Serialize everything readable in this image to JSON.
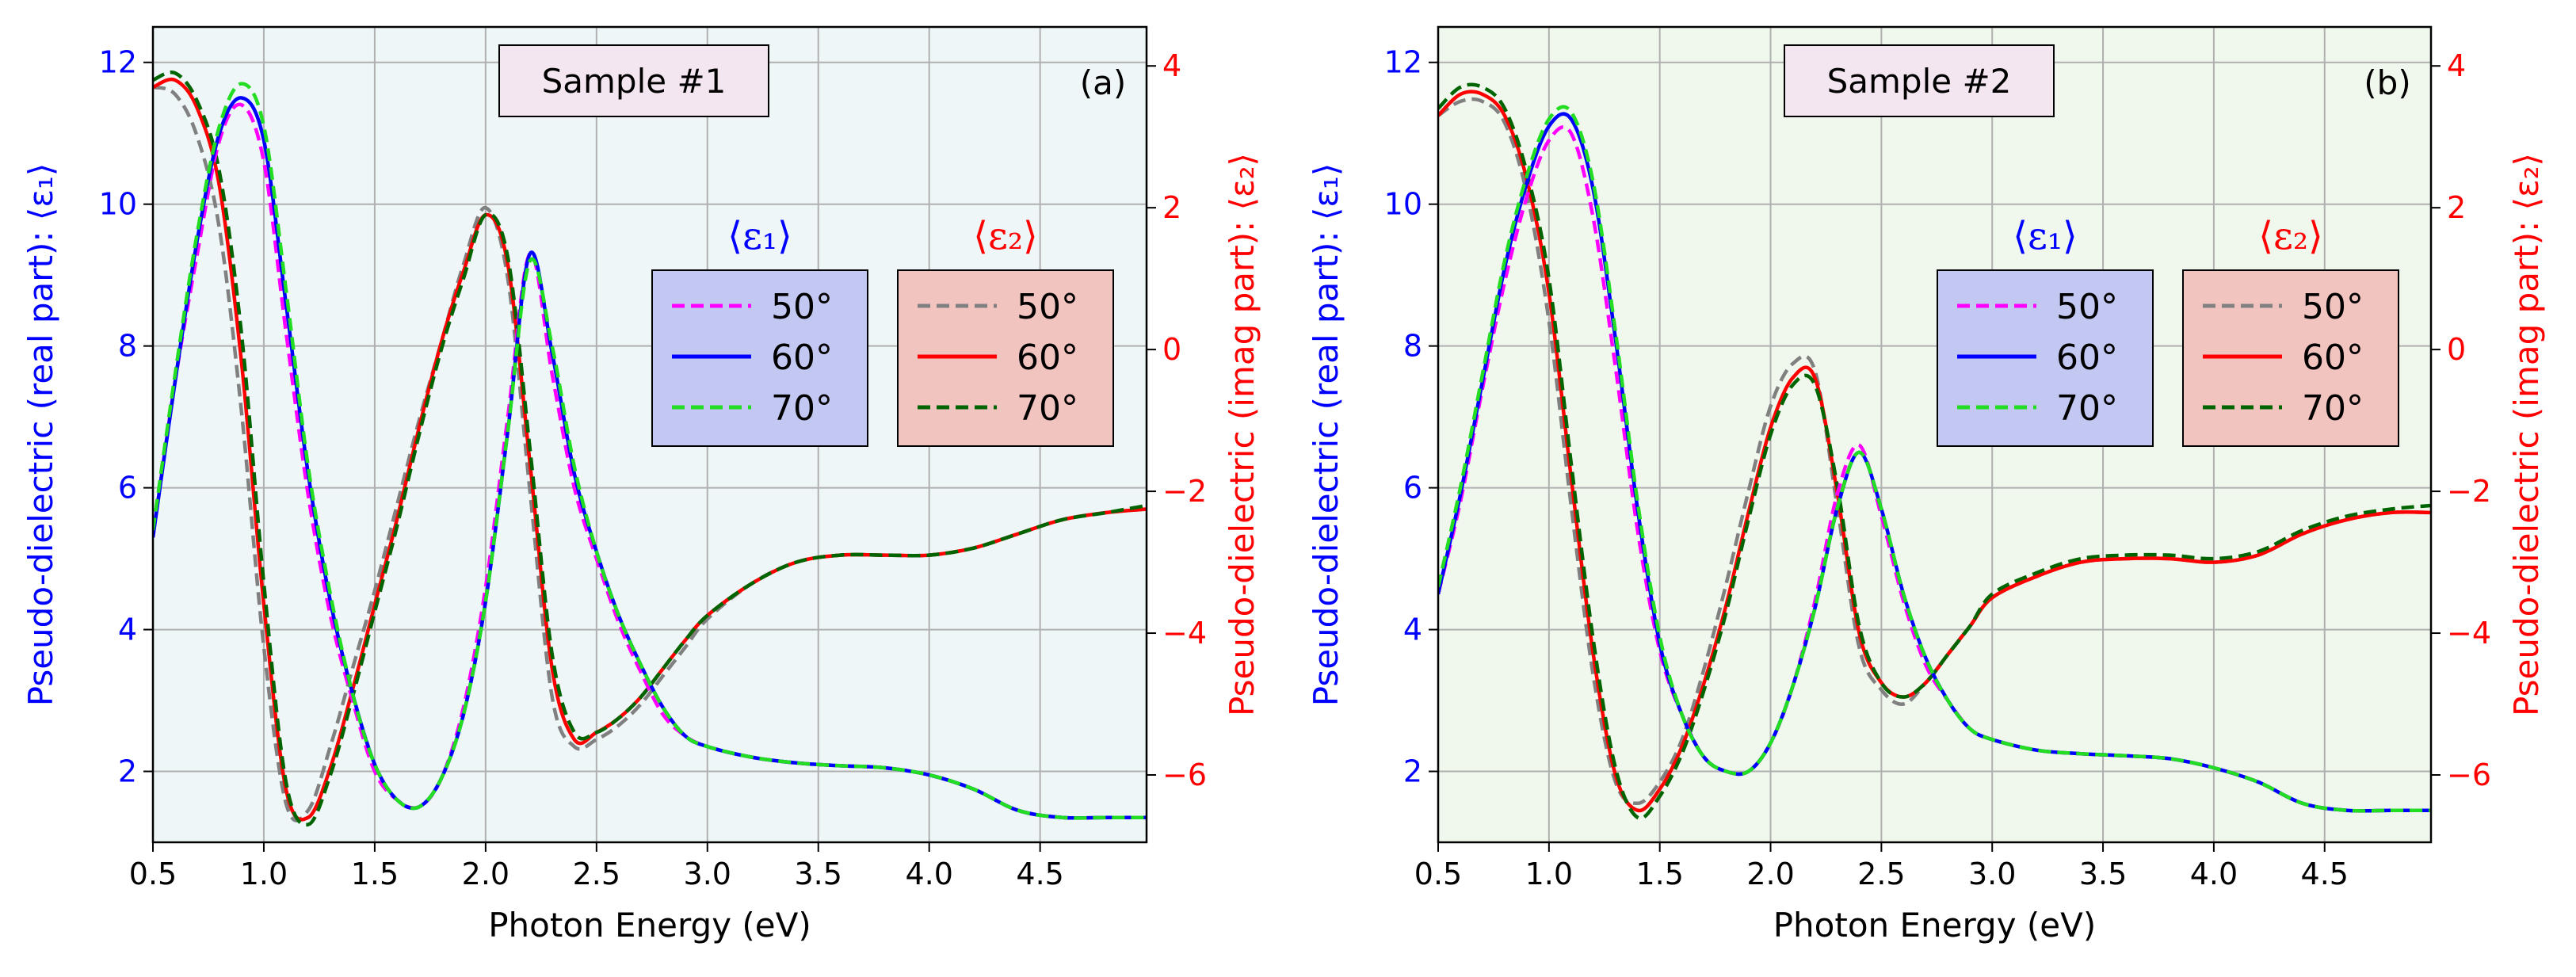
{
  "figure": {
    "background": "#ffffff",
    "color_e1_axis": "#0000ff",
    "color_e2_axis": "#ff0000"
  },
  "panels": [
    {
      "bg": "#eef6f8",
      "sample_label": "Sample #1",
      "panel_letter": "(a)",
      "xlabel": "Photon Energy (eV)",
      "ylabel_left": "Pseudo-dielectric (real part): ⟨ε₁⟩",
      "ylabel_right": "Pseudo-dielectric (imag part): ⟨ε₂⟩",
      "x_ticks": [
        "0.5",
        "1.0",
        "1.5",
        "2.0",
        "2.5",
        "3.0",
        "3.5",
        "4.0",
        "4.5"
      ],
      "y_left_ticks": [
        "2",
        "4",
        "6",
        "8",
        "10",
        "12"
      ],
      "y_right_ticks": [
        "−6",
        "−4",
        "−2",
        "0",
        "2",
        "4"
      ],
      "legend_e1": {
        "title": "⟨ε₁⟩",
        "bg": "#c3c8f2",
        "items": [
          "50°",
          "60°",
          "70°"
        ]
      },
      "legend_e2": {
        "title": "⟨ε₂⟩",
        "bg": "#f2c4c0",
        "items": [
          "50°",
          "60°",
          "70°"
        ]
      }
    },
    {
      "bg": "#f0f8ee",
      "sample_label": "Sample #2",
      "panel_letter": "(b)",
      "xlabel": "Photon Energy (eV)",
      "ylabel_left": "Pseudo-dielectric (real part): ⟨ε₁⟩",
      "ylabel_right": "Pseudo-dielectric (imag part): ⟨ε₂⟩",
      "x_ticks": [
        "0.5",
        "1.0",
        "1.5",
        "2.0",
        "2.5",
        "3.0",
        "3.5",
        "4.0",
        "4.5"
      ],
      "y_left_ticks": [
        "2",
        "4",
        "6",
        "8",
        "10",
        "12"
      ],
      "y_right_ticks": [
        "−6",
        "−4",
        "−2",
        "0",
        "2",
        "4"
      ],
      "legend_e1": {
        "title": "⟨ε₁⟩",
        "bg": "#c3c8f2",
        "items": [
          "50°",
          "60°",
          "70°"
        ]
      },
      "legend_e2": {
        "title": "⟨ε₂⟩",
        "bg": "#f2c4c0",
        "items": [
          "50°",
          "60°",
          "70°"
        ]
      }
    }
  ],
  "chart_data": [
    {
      "type": "line",
      "title": "Sample #1",
      "xlabel": "Photon Energy (eV)",
      "ylabel": "Pseudo-dielectric (real part): ⟨ε₁⟩",
      "ylabel_right": "Pseudo-dielectric (imag part): ⟨ε₂⟩",
      "xlim": [
        0.5,
        4.98
      ],
      "ylim": [
        1.0,
        12.5
      ],
      "ylim_right": [
        -6.95,
        4.55
      ],
      "grid": true,
      "legend_placement": "center-right",
      "x": [
        0.5,
        0.6,
        0.7,
        0.8,
        0.9,
        1.0,
        1.1,
        1.2,
        1.3,
        1.4,
        1.5,
        1.6,
        1.7,
        1.8,
        1.9,
        2.0,
        2.1,
        2.2,
        2.3,
        2.4,
        2.5,
        2.6,
        2.7,
        2.8,
        2.9,
        3.0,
        3.2,
        3.4,
        3.6,
        3.8,
        4.0,
        4.2,
        4.4,
        4.6,
        4.8,
        4.98
      ],
      "series": [
        {
          "name": "⟨ε₁⟩ 50°",
          "axis": "left",
          "color": "#ff00ff",
          "dash": "dashed",
          "values": [
            5.3,
            7.5,
            9.3,
            10.9,
            11.4,
            10.6,
            8.2,
            5.9,
            4.2,
            3.0,
            2.0,
            1.6,
            1.5,
            1.9,
            2.9,
            4.6,
            7.0,
            9.3,
            7.6,
            6.0,
            5.0,
            4.1,
            3.4,
            2.8,
            2.5,
            2.35,
            2.2,
            2.12,
            2.08,
            2.05,
            1.95,
            1.75,
            1.45,
            1.35,
            1.35,
            1.35
          ]
        },
        {
          "name": "⟨ε₁⟩ 60°",
          "axis": "left",
          "color": "#0000ff",
          "dash": "solid",
          "values": [
            5.3,
            7.5,
            9.5,
            11.0,
            11.5,
            10.9,
            8.6,
            6.2,
            4.4,
            3.1,
            2.1,
            1.6,
            1.5,
            1.9,
            2.8,
            4.4,
            6.8,
            9.3,
            7.9,
            6.2,
            5.1,
            4.2,
            3.5,
            2.9,
            2.5,
            2.35,
            2.2,
            2.12,
            2.08,
            2.05,
            1.95,
            1.75,
            1.45,
            1.35,
            1.35,
            1.35
          ]
        },
        {
          "name": "⟨ε₁⟩ 70°",
          "axis": "left",
          "color": "#22dd22",
          "dash": "dashed",
          "values": [
            5.4,
            7.6,
            9.6,
            11.1,
            11.7,
            11.1,
            8.8,
            6.3,
            4.5,
            3.1,
            2.1,
            1.6,
            1.5,
            1.9,
            2.8,
            4.4,
            6.8,
            9.2,
            8.0,
            6.3,
            5.1,
            4.2,
            3.5,
            2.9,
            2.5,
            2.35,
            2.2,
            2.12,
            2.08,
            2.05,
            1.95,
            1.75,
            1.45,
            1.35,
            1.35,
            1.35
          ]
        },
        {
          "name": "⟨ε₂⟩ 50°",
          "axis": "right",
          "color": "#808080",
          "dash": "dashed",
          "values": [
            3.7,
            3.6,
            3.0,
            1.7,
            -0.9,
            -4.2,
            -6.4,
            -6.5,
            -5.6,
            -4.5,
            -3.4,
            -2.2,
            -1.0,
            0.1,
            1.2,
            2.0,
            1.0,
            -2.0,
            -4.9,
            -5.6,
            -5.5,
            -5.3,
            -5.0,
            -4.6,
            -4.2,
            -3.8,
            -3.3,
            -3.0,
            -2.9,
            -2.9,
            -2.9,
            -2.8,
            -2.6,
            -2.4,
            -2.3,
            -2.25
          ]
        },
        {
          "name": "⟨ε₂⟩ 60°",
          "axis": "right",
          "color": "#ff0000",
          "dash": "solid",
          "values": [
            3.7,
            3.8,
            3.4,
            2.3,
            -0.2,
            -3.6,
            -6.2,
            -6.6,
            -5.9,
            -4.8,
            -3.6,
            -2.4,
            -1.1,
            0.1,
            1.1,
            1.9,
            1.2,
            -1.6,
            -4.5,
            -5.5,
            -5.4,
            -5.2,
            -4.9,
            -4.5,
            -4.1,
            -3.75,
            -3.3,
            -3.0,
            -2.9,
            -2.9,
            -2.9,
            -2.8,
            -2.6,
            -2.4,
            -2.3,
            -2.25
          ]
        },
        {
          "name": "⟨ε₂⟩ 70°",
          "axis": "right",
          "color": "#006400",
          "dash": "dashed",
          "values": [
            3.8,
            3.9,
            3.5,
            2.5,
            0.2,
            -3.3,
            -6.1,
            -6.7,
            -6.0,
            -4.9,
            -3.7,
            -2.5,
            -1.2,
            0.0,
            1.0,
            1.9,
            1.3,
            -1.4,
            -4.3,
            -5.4,
            -5.4,
            -5.2,
            -4.9,
            -4.5,
            -4.1,
            -3.75,
            -3.3,
            -3.0,
            -2.9,
            -2.9,
            -2.9,
            -2.8,
            -2.6,
            -2.4,
            -2.3,
            -2.2
          ]
        }
      ]
    },
    {
      "type": "line",
      "title": "Sample #2",
      "xlabel": "Photon Energy (eV)",
      "ylabel": "Pseudo-dielectric (real part): ⟨ε₁⟩",
      "ylabel_right": "Pseudo-dielectric (imag part): ⟨ε₂⟩",
      "xlim": [
        0.5,
        4.98
      ],
      "ylim": [
        1.0,
        12.5
      ],
      "ylim_right": [
        -6.95,
        4.55
      ],
      "grid": true,
      "legend_placement": "center-right",
      "x": [
        0.5,
        0.6,
        0.7,
        0.8,
        0.9,
        1.0,
        1.1,
        1.2,
        1.3,
        1.4,
        1.5,
        1.6,
        1.7,
        1.8,
        1.9,
        2.0,
        2.1,
        2.2,
        2.3,
        2.4,
        2.5,
        2.6,
        2.7,
        2.8,
        2.9,
        3.0,
        3.2,
        3.4,
        3.6,
        3.8,
        4.0,
        4.2,
        4.4,
        4.6,
        4.8,
        4.98
      ],
      "series": [
        {
          "name": "⟨ε₁⟩ 50°",
          "axis": "left",
          "color": "#ff00ff",
          "dash": "dashed",
          "values": [
            4.5,
            5.8,
            7.4,
            8.9,
            10.1,
            10.9,
            11.0,
            9.8,
            7.7,
            5.4,
            3.7,
            2.8,
            2.2,
            2.0,
            2.0,
            2.4,
            3.2,
            4.4,
            5.9,
            6.6,
            5.6,
            4.4,
            3.5,
            3.0,
            2.6,
            2.45,
            2.3,
            2.25,
            2.22,
            2.18,
            2.05,
            1.85,
            1.55,
            1.45,
            1.45,
            1.45
          ]
        },
        {
          "name": "⟨ε₁⟩ 60°",
          "axis": "left",
          "color": "#0000ff",
          "dash": "solid",
          "values": [
            4.5,
            5.9,
            7.5,
            9.1,
            10.3,
            11.1,
            11.2,
            10.2,
            8.1,
            5.7,
            3.8,
            2.8,
            2.2,
            2.0,
            2.0,
            2.4,
            3.2,
            4.3,
            5.7,
            6.5,
            5.7,
            4.5,
            3.6,
            3.0,
            2.6,
            2.45,
            2.3,
            2.25,
            2.22,
            2.18,
            2.05,
            1.85,
            1.55,
            1.45,
            1.45,
            1.45
          ]
        },
        {
          "name": "⟨ε₁⟩ 70°",
          "axis": "left",
          "color": "#22dd22",
          "dash": "dashed",
          "values": [
            4.6,
            6.0,
            7.6,
            9.2,
            10.4,
            11.2,
            11.3,
            10.3,
            8.2,
            5.8,
            3.9,
            2.8,
            2.2,
            2.0,
            2.0,
            2.4,
            3.2,
            4.3,
            5.7,
            6.5,
            5.7,
            4.5,
            3.6,
            3.0,
            2.6,
            2.45,
            2.3,
            2.25,
            2.22,
            2.18,
            2.05,
            1.85,
            1.55,
            1.45,
            1.45,
            1.45
          ]
        },
        {
          "name": "⟨ε₂⟩ 50°",
          "axis": "right",
          "color": "#808080",
          "dash": "dashed",
          "values": [
            3.3,
            3.5,
            3.5,
            3.2,
            2.2,
            0.4,
            -2.2,
            -4.6,
            -6.1,
            -6.4,
            -6.1,
            -5.5,
            -4.5,
            -3.3,
            -2.0,
            -0.8,
            -0.2,
            -0.3,
            -2.2,
            -4.2,
            -4.8,
            -5.0,
            -4.7,
            -4.3,
            -3.9,
            -3.5,
            -3.2,
            -3.0,
            -2.95,
            -2.95,
            -3.0,
            -2.9,
            -2.6,
            -2.4,
            -2.3,
            -2.3
          ]
        },
        {
          "name": "⟨ε₂⟩ 60°",
          "axis": "right",
          "color": "#ff0000",
          "dash": "solid",
          "values": [
            3.3,
            3.6,
            3.6,
            3.3,
            2.4,
            0.8,
            -1.8,
            -4.3,
            -6.0,
            -6.5,
            -6.2,
            -5.6,
            -4.7,
            -3.6,
            -2.3,
            -1.1,
            -0.4,
            -0.4,
            -2.0,
            -4.0,
            -4.7,
            -4.9,
            -4.7,
            -4.3,
            -3.9,
            -3.5,
            -3.2,
            -3.0,
            -2.95,
            -2.95,
            -3.0,
            -2.9,
            -2.6,
            -2.4,
            -2.3,
            -2.3
          ]
        },
        {
          "name": "⟨ε₂⟩ 70°",
          "axis": "right",
          "color": "#006400",
          "dash": "dashed",
          "values": [
            3.4,
            3.7,
            3.7,
            3.4,
            2.5,
            1.0,
            -1.6,
            -4.1,
            -5.9,
            -6.6,
            -6.3,
            -5.7,
            -4.8,
            -3.7,
            -2.4,
            -1.2,
            -0.5,
            -0.5,
            -1.9,
            -3.9,
            -4.7,
            -4.9,
            -4.7,
            -4.3,
            -3.9,
            -3.45,
            -3.15,
            -2.95,
            -2.9,
            -2.9,
            -2.95,
            -2.85,
            -2.55,
            -2.35,
            -2.25,
            -2.2
          ]
        }
      ]
    }
  ]
}
